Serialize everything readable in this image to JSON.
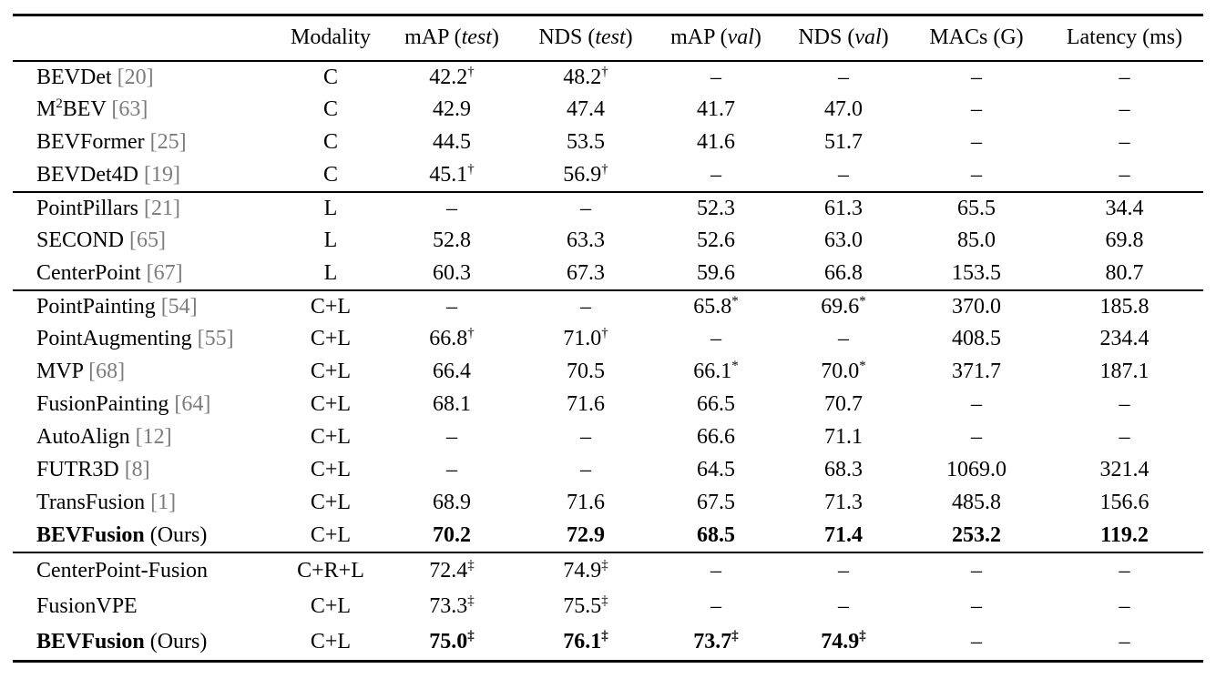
{
  "table": {
    "columns": [
      {
        "pre": ""
      },
      {
        "pre": "Modality"
      },
      {
        "pre": "mAP (",
        "it": "test",
        "post": ")"
      },
      {
        "pre": "NDS (",
        "it": "test",
        "post": ")"
      },
      {
        "pre": "mAP (",
        "it": "val",
        "post": ")"
      },
      {
        "pre": "NDS (",
        "it": "val",
        "post": ")"
      },
      {
        "pre": "MACs (G)"
      },
      {
        "pre": "Latency (ms)"
      }
    ],
    "groups": [
      {
        "rows": [
          {
            "method": {
              "parts": [
                {
                  "t": "BEVDet"
                }
              ],
              "citation": "[20]"
            },
            "modality": "C",
            "cells": [
              {
                "v": "42.2",
                "sup": "†"
              },
              {
                "v": "48.2",
                "sup": "†"
              },
              {
                "v": "–"
              },
              {
                "v": "–"
              },
              {
                "v": "–"
              },
              {
                "v": "–"
              }
            ]
          },
          {
            "method": {
              "parts": [
                {
                  "t": "M"
                },
                {
                  "t": "2",
                  "sup": true
                },
                {
                  "t": "BEV"
                }
              ],
              "citation": "[63]"
            },
            "modality": "C",
            "cells": [
              {
                "v": "42.9"
              },
              {
                "v": "47.4"
              },
              {
                "v": "41.7"
              },
              {
                "v": "47.0"
              },
              {
                "v": "–"
              },
              {
                "v": "–"
              }
            ]
          },
          {
            "method": {
              "parts": [
                {
                  "t": "BEVFormer"
                }
              ],
              "citation": "[25]"
            },
            "modality": "C",
            "cells": [
              {
                "v": "44.5"
              },
              {
                "v": "53.5"
              },
              {
                "v": "41.6"
              },
              {
                "v": "51.7"
              },
              {
                "v": "–"
              },
              {
                "v": "–"
              }
            ]
          },
          {
            "method": {
              "parts": [
                {
                  "t": "BEVDet4D"
                }
              ],
              "citation": "[19]"
            },
            "modality": "C",
            "cells": [
              {
                "v": "45.1",
                "sup": "†"
              },
              {
                "v": "56.9",
                "sup": "†"
              },
              {
                "v": "–"
              },
              {
                "v": "–"
              },
              {
                "v": "–"
              },
              {
                "v": "–"
              }
            ]
          }
        ]
      },
      {
        "rows": [
          {
            "method": {
              "parts": [
                {
                  "t": "PointPillars"
                }
              ],
              "citation": "[21]"
            },
            "modality": "L",
            "cells": [
              {
                "v": "–"
              },
              {
                "v": "–"
              },
              {
                "v": "52.3"
              },
              {
                "v": "61.3"
              },
              {
                "v": "65.5"
              },
              {
                "v": "34.4"
              }
            ]
          },
          {
            "method": {
              "parts": [
                {
                  "t": "SECOND"
                }
              ],
              "citation": "[65]"
            },
            "modality": "L",
            "cells": [
              {
                "v": "52.8"
              },
              {
                "v": "63.3"
              },
              {
                "v": "52.6"
              },
              {
                "v": "63.0"
              },
              {
                "v": "85.0"
              },
              {
                "v": "69.8"
              }
            ]
          },
          {
            "method": {
              "parts": [
                {
                  "t": "CenterPoint"
                }
              ],
              "citation": "[67]"
            },
            "modality": "L",
            "cells": [
              {
                "v": "60.3"
              },
              {
                "v": "67.3"
              },
              {
                "v": "59.6"
              },
              {
                "v": "66.8"
              },
              {
                "v": "153.5"
              },
              {
                "v": "80.7"
              }
            ]
          }
        ]
      },
      {
        "rows": [
          {
            "method": {
              "parts": [
                {
                  "t": "PointPainting"
                }
              ],
              "citation": "[54]"
            },
            "modality": "C+L",
            "cells": [
              {
                "v": "–"
              },
              {
                "v": "–"
              },
              {
                "v": "65.8",
                "sup": "*"
              },
              {
                "v": "69.6",
                "sup": "*"
              },
              {
                "v": "370.0"
              },
              {
                "v": "185.8"
              }
            ]
          },
          {
            "method": {
              "parts": [
                {
                  "t": "PointAugmenting"
                }
              ],
              "citation": "[55]"
            },
            "modality": "C+L",
            "cells": [
              {
                "v": "66.8",
                "sup": "†"
              },
              {
                "v": "71.0",
                "sup": "†"
              },
              {
                "v": "–"
              },
              {
                "v": "–"
              },
              {
                "v": "408.5"
              },
              {
                "v": "234.4"
              }
            ]
          },
          {
            "method": {
              "parts": [
                {
                  "t": "MVP"
                }
              ],
              "citation": "[68]"
            },
            "modality": "C+L",
            "cells": [
              {
                "v": "66.4"
              },
              {
                "v": "70.5"
              },
              {
                "v": "66.1",
                "sup": "*"
              },
              {
                "v": "70.0",
                "sup": "*"
              },
              {
                "v": "371.7"
              },
              {
                "v": "187.1"
              }
            ]
          },
          {
            "method": {
              "parts": [
                {
                  "t": "FusionPainting"
                }
              ],
              "citation": "[64]"
            },
            "modality": "C+L",
            "cells": [
              {
                "v": "68.1"
              },
              {
                "v": "71.6"
              },
              {
                "v": "66.5"
              },
              {
                "v": "70.7"
              },
              {
                "v": "–"
              },
              {
                "v": "–"
              }
            ]
          },
          {
            "method": {
              "parts": [
                {
                  "t": "AutoAlign"
                }
              ],
              "citation": "[12]"
            },
            "modality": "C+L",
            "cells": [
              {
                "v": "–"
              },
              {
                "v": "–"
              },
              {
                "v": "66.6"
              },
              {
                "v": "71.1"
              },
              {
                "v": "–"
              },
              {
                "v": "–"
              }
            ]
          },
          {
            "method": {
              "parts": [
                {
                  "t": "FUTR3D"
                }
              ],
              "citation": "[8]"
            },
            "modality": "C+L",
            "cells": [
              {
                "v": "–"
              },
              {
                "v": "–"
              },
              {
                "v": "64.5"
              },
              {
                "v": "68.3"
              },
              {
                "v": "1069.0"
              },
              {
                "v": "321.4"
              }
            ]
          },
          {
            "method": {
              "parts": [
                {
                  "t": "TransFusion"
                }
              ],
              "citation": "[1]"
            },
            "modality": "C+L",
            "cells": [
              {
                "v": "68.9"
              },
              {
                "v": "71.6"
              },
              {
                "v": "67.5"
              },
              {
                "v": "71.3"
              },
              {
                "v": "485.8"
              },
              {
                "v": "156.6"
              }
            ]
          },
          {
            "method": {
              "parts": [
                {
                  "t": "BEVFusion",
                  "bold": true
                }
              ],
              "suffix": " (Ours)"
            },
            "modality": "C+L",
            "cells": [
              {
                "v": "70.2",
                "bold": true
              },
              {
                "v": "72.9",
                "bold": true
              },
              {
                "v": "68.5",
                "bold": true
              },
              {
                "v": "71.4",
                "bold": true
              },
              {
                "v": "253.2",
                "bold": true
              },
              {
                "v": "119.2",
                "bold": true
              }
            ]
          }
        ]
      },
      {
        "rows": [
          {
            "method": {
              "parts": [
                {
                  "t": "CenterPoint-Fusion"
                }
              ]
            },
            "modality": "C+R+L",
            "cells": [
              {
                "v": "72.4",
                "sup": "‡"
              },
              {
                "v": "74.9",
                "sup": "‡"
              },
              {
                "v": "–"
              },
              {
                "v": "–"
              },
              {
                "v": "–"
              },
              {
                "v": "–"
              }
            ]
          },
          {
            "method": {
              "parts": [
                {
                  "t": "FusionVPE"
                }
              ]
            },
            "modality": "C+L",
            "cells": [
              {
                "v": "73.3",
                "sup": "‡"
              },
              {
                "v": "75.5",
                "sup": "‡"
              },
              {
                "v": "–"
              },
              {
                "v": "–"
              },
              {
                "v": "–"
              },
              {
                "v": "–"
              }
            ]
          },
          {
            "method": {
              "parts": [
                {
                  "t": "BEVFusion",
                  "bold": true
                }
              ],
              "suffix": " (Ours)"
            },
            "modality": "C+L",
            "cells": [
              {
                "v": "75.0",
                "sup": "‡",
                "bold": true
              },
              {
                "v": "76.1",
                "sup": "‡",
                "bold": true
              },
              {
                "v": "73.7",
                "sup": "‡",
                "bold": true
              },
              {
                "v": "74.9",
                "sup": "‡",
                "bold": true
              },
              {
                "v": "–"
              },
              {
                "v": "–"
              }
            ]
          }
        ]
      }
    ]
  }
}
